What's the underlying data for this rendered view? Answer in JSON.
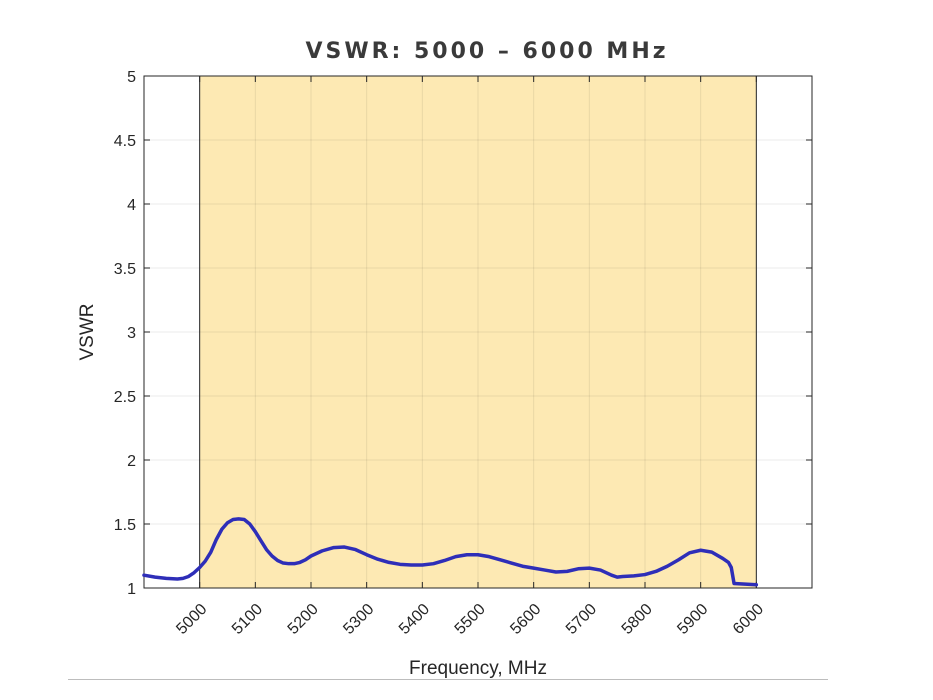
{
  "chart_data": {
    "type": "line",
    "title": "VSWR: 5000 – 6000 MHz",
    "xlabel": "Frequency, MHz",
    "ylabel": "VSWR",
    "xlim": [
      4900,
      6100
    ],
    "ylim": [
      1,
      5
    ],
    "x_ticks": [
      "5000",
      "5100",
      "5200",
      "5300",
      "5400",
      "5500",
      "5600",
      "5700",
      "5800",
      "5900",
      "6000"
    ],
    "x_tick_values": [
      5000,
      5100,
      5200,
      5300,
      5400,
      5500,
      5600,
      5700,
      5800,
      5900,
      6000
    ],
    "y_ticks": [
      "1",
      "1.5",
      "2",
      "2.5",
      "3",
      "3.5",
      "4",
      "4.5",
      "5"
    ],
    "y_tick_values": [
      1,
      1.5,
      2,
      2.5,
      3,
      3.5,
      4,
      4.5,
      5
    ],
    "grid": true,
    "highlight_band": {
      "x_range": [
        5000,
        6000
      ],
      "color": "#fde9b3"
    },
    "series": [
      {
        "color": "#2e2eb8",
        "x": [
          4900,
          4920,
          4940,
          4960,
          4970,
          4980,
          4990,
          5000,
          5010,
          5020,
          5030,
          5040,
          5050,
          5060,
          5070,
          5080,
          5090,
          5100,
          5110,
          5120,
          5130,
          5140,
          5150,
          5160,
          5170,
          5180,
          5190,
          5200,
          5220,
          5240,
          5260,
          5280,
          5300,
          5320,
          5340,
          5360,
          5380,
          5400,
          5420,
          5440,
          5460,
          5480,
          5500,
          5520,
          5540,
          5560,
          5580,
          5600,
          5620,
          5640,
          5660,
          5680,
          5700,
          5720,
          5740,
          5750,
          5760,
          5780,
          5800,
          5820,
          5840,
          5860,
          5880,
          5900,
          5920,
          5940,
          5950,
          5955,
          5960,
          5980,
          6000
        ],
        "y": [
          1.1,
          1.085,
          1.075,
          1.07,
          1.075,
          1.09,
          1.12,
          1.16,
          1.21,
          1.28,
          1.38,
          1.46,
          1.51,
          1.535,
          1.54,
          1.535,
          1.5,
          1.44,
          1.37,
          1.3,
          1.25,
          1.215,
          1.195,
          1.19,
          1.19,
          1.2,
          1.22,
          1.25,
          1.29,
          1.315,
          1.32,
          1.3,
          1.26,
          1.225,
          1.2,
          1.185,
          1.18,
          1.18,
          1.19,
          1.215,
          1.245,
          1.26,
          1.26,
          1.245,
          1.22,
          1.195,
          1.17,
          1.155,
          1.14,
          1.125,
          1.13,
          1.15,
          1.155,
          1.14,
          1.1,
          1.085,
          1.09,
          1.095,
          1.105,
          1.13,
          1.17,
          1.22,
          1.275,
          1.295,
          1.28,
          1.23,
          1.2,
          1.16,
          1.035,
          1.03,
          1.025
        ]
      }
    ]
  }
}
